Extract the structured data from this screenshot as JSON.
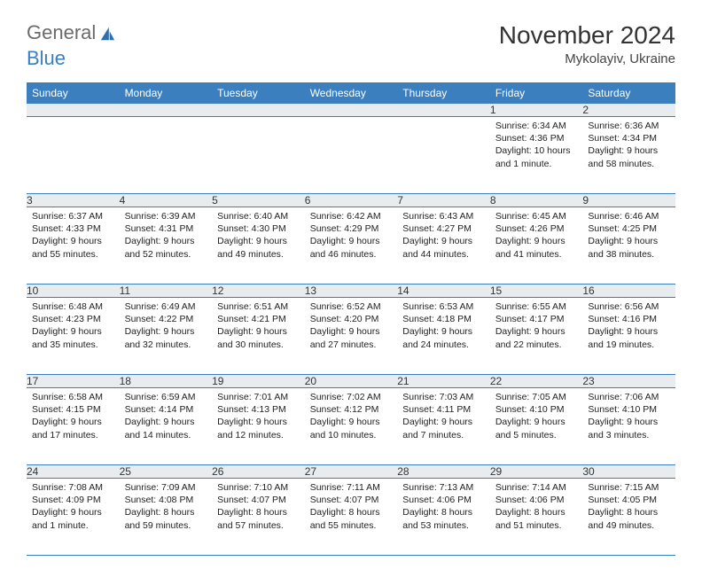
{
  "brand": {
    "general": "General",
    "blue": "Blue"
  },
  "title": "November 2024",
  "location": "Mykolayiv, Ukraine",
  "colors": {
    "header_bg": "#3b7fbf",
    "header_text": "#ffffff",
    "daynum_bg": "#e9ecef",
    "border": "#3b7fbf",
    "text": "#222222",
    "logo_gray": "#6b6b6b",
    "logo_blue": "#3b7fbf",
    "page_bg": "#ffffff"
  },
  "fonts": {
    "title_size_pt": 21,
    "location_size_pt": 11,
    "header_size_pt": 9,
    "body_size_pt": 8
  },
  "weekdays": [
    "Sunday",
    "Monday",
    "Tuesday",
    "Wednesday",
    "Thursday",
    "Friday",
    "Saturday"
  ],
  "weeks": [
    [
      null,
      null,
      null,
      null,
      null,
      {
        "n": "1",
        "sr": "Sunrise: 6:34 AM",
        "ss": "Sunset: 4:36 PM",
        "dl": "Daylight: 10 hours and 1 minute."
      },
      {
        "n": "2",
        "sr": "Sunrise: 6:36 AM",
        "ss": "Sunset: 4:34 PM",
        "dl": "Daylight: 9 hours and 58 minutes."
      }
    ],
    [
      {
        "n": "3",
        "sr": "Sunrise: 6:37 AM",
        "ss": "Sunset: 4:33 PM",
        "dl": "Daylight: 9 hours and 55 minutes."
      },
      {
        "n": "4",
        "sr": "Sunrise: 6:39 AM",
        "ss": "Sunset: 4:31 PM",
        "dl": "Daylight: 9 hours and 52 minutes."
      },
      {
        "n": "5",
        "sr": "Sunrise: 6:40 AM",
        "ss": "Sunset: 4:30 PM",
        "dl": "Daylight: 9 hours and 49 minutes."
      },
      {
        "n": "6",
        "sr": "Sunrise: 6:42 AM",
        "ss": "Sunset: 4:29 PM",
        "dl": "Daylight: 9 hours and 46 minutes."
      },
      {
        "n": "7",
        "sr": "Sunrise: 6:43 AM",
        "ss": "Sunset: 4:27 PM",
        "dl": "Daylight: 9 hours and 44 minutes."
      },
      {
        "n": "8",
        "sr": "Sunrise: 6:45 AM",
        "ss": "Sunset: 4:26 PM",
        "dl": "Daylight: 9 hours and 41 minutes."
      },
      {
        "n": "9",
        "sr": "Sunrise: 6:46 AM",
        "ss": "Sunset: 4:25 PM",
        "dl": "Daylight: 9 hours and 38 minutes."
      }
    ],
    [
      {
        "n": "10",
        "sr": "Sunrise: 6:48 AM",
        "ss": "Sunset: 4:23 PM",
        "dl": "Daylight: 9 hours and 35 minutes."
      },
      {
        "n": "11",
        "sr": "Sunrise: 6:49 AM",
        "ss": "Sunset: 4:22 PM",
        "dl": "Daylight: 9 hours and 32 minutes."
      },
      {
        "n": "12",
        "sr": "Sunrise: 6:51 AM",
        "ss": "Sunset: 4:21 PM",
        "dl": "Daylight: 9 hours and 30 minutes."
      },
      {
        "n": "13",
        "sr": "Sunrise: 6:52 AM",
        "ss": "Sunset: 4:20 PM",
        "dl": "Daylight: 9 hours and 27 minutes."
      },
      {
        "n": "14",
        "sr": "Sunrise: 6:53 AM",
        "ss": "Sunset: 4:18 PM",
        "dl": "Daylight: 9 hours and 24 minutes."
      },
      {
        "n": "15",
        "sr": "Sunrise: 6:55 AM",
        "ss": "Sunset: 4:17 PM",
        "dl": "Daylight: 9 hours and 22 minutes."
      },
      {
        "n": "16",
        "sr": "Sunrise: 6:56 AM",
        "ss": "Sunset: 4:16 PM",
        "dl": "Daylight: 9 hours and 19 minutes."
      }
    ],
    [
      {
        "n": "17",
        "sr": "Sunrise: 6:58 AM",
        "ss": "Sunset: 4:15 PM",
        "dl": "Daylight: 9 hours and 17 minutes."
      },
      {
        "n": "18",
        "sr": "Sunrise: 6:59 AM",
        "ss": "Sunset: 4:14 PM",
        "dl": "Daylight: 9 hours and 14 minutes."
      },
      {
        "n": "19",
        "sr": "Sunrise: 7:01 AM",
        "ss": "Sunset: 4:13 PM",
        "dl": "Daylight: 9 hours and 12 minutes."
      },
      {
        "n": "20",
        "sr": "Sunrise: 7:02 AM",
        "ss": "Sunset: 4:12 PM",
        "dl": "Daylight: 9 hours and 10 minutes."
      },
      {
        "n": "21",
        "sr": "Sunrise: 7:03 AM",
        "ss": "Sunset: 4:11 PM",
        "dl": "Daylight: 9 hours and 7 minutes."
      },
      {
        "n": "22",
        "sr": "Sunrise: 7:05 AM",
        "ss": "Sunset: 4:10 PM",
        "dl": "Daylight: 9 hours and 5 minutes."
      },
      {
        "n": "23",
        "sr": "Sunrise: 7:06 AM",
        "ss": "Sunset: 4:10 PM",
        "dl": "Daylight: 9 hours and 3 minutes."
      }
    ],
    [
      {
        "n": "24",
        "sr": "Sunrise: 7:08 AM",
        "ss": "Sunset: 4:09 PM",
        "dl": "Daylight: 9 hours and 1 minute."
      },
      {
        "n": "25",
        "sr": "Sunrise: 7:09 AM",
        "ss": "Sunset: 4:08 PM",
        "dl": "Daylight: 8 hours and 59 minutes."
      },
      {
        "n": "26",
        "sr": "Sunrise: 7:10 AM",
        "ss": "Sunset: 4:07 PM",
        "dl": "Daylight: 8 hours and 57 minutes."
      },
      {
        "n": "27",
        "sr": "Sunrise: 7:11 AM",
        "ss": "Sunset: 4:07 PM",
        "dl": "Daylight: 8 hours and 55 minutes."
      },
      {
        "n": "28",
        "sr": "Sunrise: 7:13 AM",
        "ss": "Sunset: 4:06 PM",
        "dl": "Daylight: 8 hours and 53 minutes."
      },
      {
        "n": "29",
        "sr": "Sunrise: 7:14 AM",
        "ss": "Sunset: 4:06 PM",
        "dl": "Daylight: 8 hours and 51 minutes."
      },
      {
        "n": "30",
        "sr": "Sunrise: 7:15 AM",
        "ss": "Sunset: 4:05 PM",
        "dl": "Daylight: 8 hours and 49 minutes."
      }
    ]
  ]
}
